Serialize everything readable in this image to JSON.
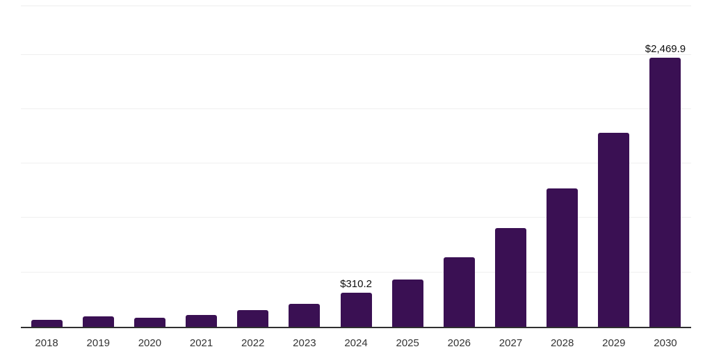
{
  "chart_data": {
    "type": "bar",
    "title": "",
    "xlabel": "",
    "ylabel": "",
    "categories": [
      "2018",
      "2019",
      "2020",
      "2021",
      "2022",
      "2023",
      "2024",
      "2025",
      "2026",
      "2027",
      "2028",
      "2029",
      "2030"
    ],
    "values": [
      67,
      95,
      81,
      109,
      154,
      211,
      310.2,
      434,
      639,
      908,
      1273,
      1780,
      2469.9
    ],
    "labeled_points": [
      {
        "category": "2024",
        "label": "$310.2"
      },
      {
        "category": "2030",
        "label": "$2,469.9"
      }
    ],
    "ylim": [
      0,
      2945
    ],
    "gridline_values": [
      500,
      1000,
      1500,
      2000,
      2500
    ],
    "grid": "horizontal-light",
    "legend_position": "none",
    "colors": {
      "bar": "#3a1053",
      "axis_line": "#2f2f2f",
      "gridline": "#efefef",
      "plot_top_border": "#ededed",
      "x_label": "#333333",
      "value_label": "#0d0d0d",
      "background": "#ffffff"
    }
  }
}
